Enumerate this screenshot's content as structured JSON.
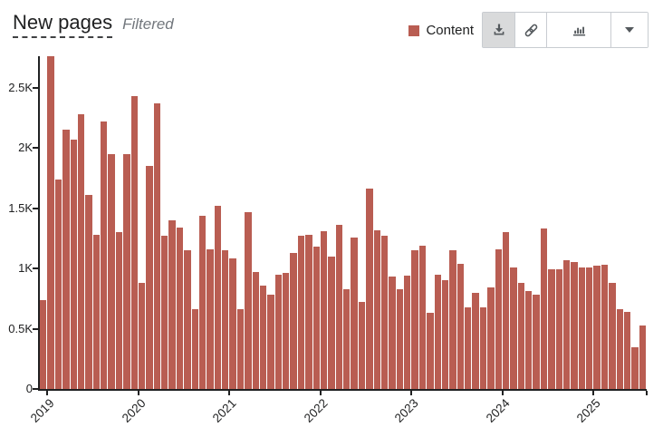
{
  "header": {
    "title": "New pages",
    "subtitle": "Filtered"
  },
  "legend": {
    "label": "Content",
    "color": "#b95d52"
  },
  "toolbar": {
    "download_active": true
  },
  "chart_data": {
    "type": "bar",
    "title": "New pages",
    "legend_entries": [
      "Content"
    ],
    "legend_position": "top-right",
    "bar_color": "#b95d52",
    "grid": false,
    "ylim": [
      0,
      2760
    ],
    "y_ticks": [
      {
        "value": 0,
        "label": "0"
      },
      {
        "value": 500,
        "label": "0.5K"
      },
      {
        "value": 1000,
        "label": "1K"
      },
      {
        "value": 1500,
        "label": "1.5K"
      },
      {
        "value": 2000,
        "label": "2K"
      },
      {
        "value": 2500,
        "label": "2.5K"
      }
    ],
    "x_tick_labels": [
      "2019",
      "2020",
      "2021",
      "2022",
      "2023",
      "2024",
      "2025"
    ],
    "x": [
      "2018-12",
      "2019-01",
      "2019-02",
      "2019-03",
      "2019-04",
      "2019-05",
      "2019-06",
      "2019-07",
      "2019-08",
      "2019-09",
      "2019-10",
      "2019-11",
      "2019-12",
      "2020-01",
      "2020-02",
      "2020-03",
      "2020-04",
      "2020-05",
      "2020-06",
      "2020-07",
      "2020-08",
      "2020-09",
      "2020-10",
      "2020-11",
      "2020-12",
      "2021-01",
      "2021-02",
      "2021-03",
      "2021-04",
      "2021-05",
      "2021-06",
      "2021-07",
      "2021-08",
      "2021-09",
      "2021-10",
      "2021-11",
      "2021-12",
      "2022-01",
      "2022-02",
      "2022-03",
      "2022-04",
      "2022-05",
      "2022-06",
      "2022-07",
      "2022-08",
      "2022-09",
      "2022-10",
      "2022-11",
      "2022-12",
      "2023-01",
      "2023-02",
      "2023-03",
      "2023-04",
      "2023-05",
      "2023-06",
      "2023-07",
      "2023-08",
      "2023-09",
      "2023-10",
      "2023-11",
      "2023-12",
      "2024-01",
      "2024-02",
      "2024-03",
      "2024-04",
      "2024-05",
      "2024-06",
      "2024-07",
      "2024-08",
      "2024-09",
      "2024-10",
      "2024-11",
      "2024-12",
      "2025-01",
      "2025-02",
      "2025-03",
      "2025-04",
      "2025-05",
      "2025-06",
      "2025-07"
    ],
    "values": [
      740,
      2760,
      1740,
      2150,
      2070,
      2280,
      1610,
      1280,
      2220,
      1950,
      1300,
      1950,
      2430,
      880,
      1850,
      2370,
      1270,
      1400,
      1340,
      1150,
      660,
      1440,
      1160,
      1520,
      1150,
      1080,
      660,
      1470,
      970,
      860,
      780,
      950,
      960,
      1130,
      1270,
      1280,
      1180,
      1310,
      1100,
      1360,
      830,
      1260,
      720,
      1660,
      1320,
      1270,
      930,
      830,
      940,
      1150,
      1190,
      630,
      950,
      900,
      1150,
      1040,
      680,
      800,
      680,
      840,
      1160,
      1300,
      1010,
      880,
      810,
      780,
      1330,
      990,
      990,
      1070,
      1050,
      1010,
      1010,
      1020,
      1030,
      880,
      660,
      640,
      350,
      530
    ]
  }
}
